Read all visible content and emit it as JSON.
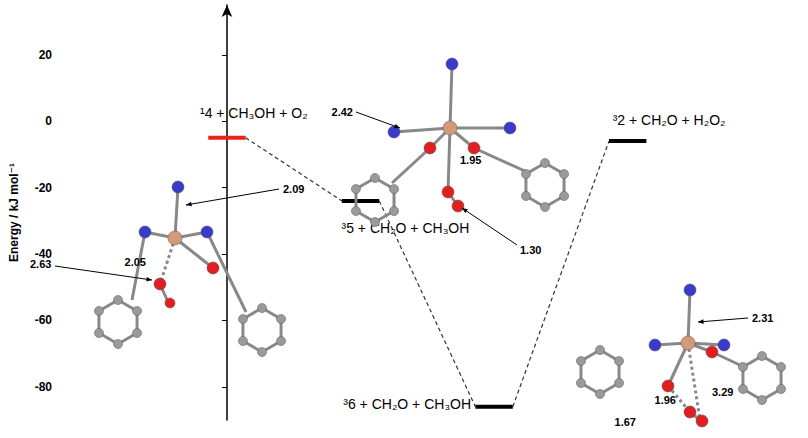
{
  "chart_data": {
    "type": "energy_profile",
    "y_label": "Energy / kJ mol⁻¹",
    "ylim": [
      -90,
      35
    ],
    "yticks": [
      20,
      0,
      -20,
      -40,
      -60,
      -80
    ],
    "grid": false,
    "levels": [
      {
        "label": "¹4 + CH₃OH + O₂",
        "value": -5,
        "color": "#e8231a"
      },
      {
        "label": "³5 + CH₂O + CH₃OH",
        "value": -24,
        "color": "#000000"
      },
      {
        "label": "³6 + CH₂O + CH₃OH",
        "value": -86,
        "color": "#000000"
      },
      {
        "label": "³2 + CH₂O + H₂O₂",
        "value": -6,
        "color": "#000000"
      }
    ],
    "connector_style": "dashed",
    "structures": [
      {
        "bond_lengths": [
          "2.09",
          "2.63",
          "2.05"
        ]
      },
      {
        "bond_lengths": [
          "2.42",
          "1.95",
          "1.30"
        ]
      },
      {
        "bond_lengths": [
          "2.31",
          "1.96",
          "3.29",
          "1.67"
        ]
      }
    ]
  }
}
